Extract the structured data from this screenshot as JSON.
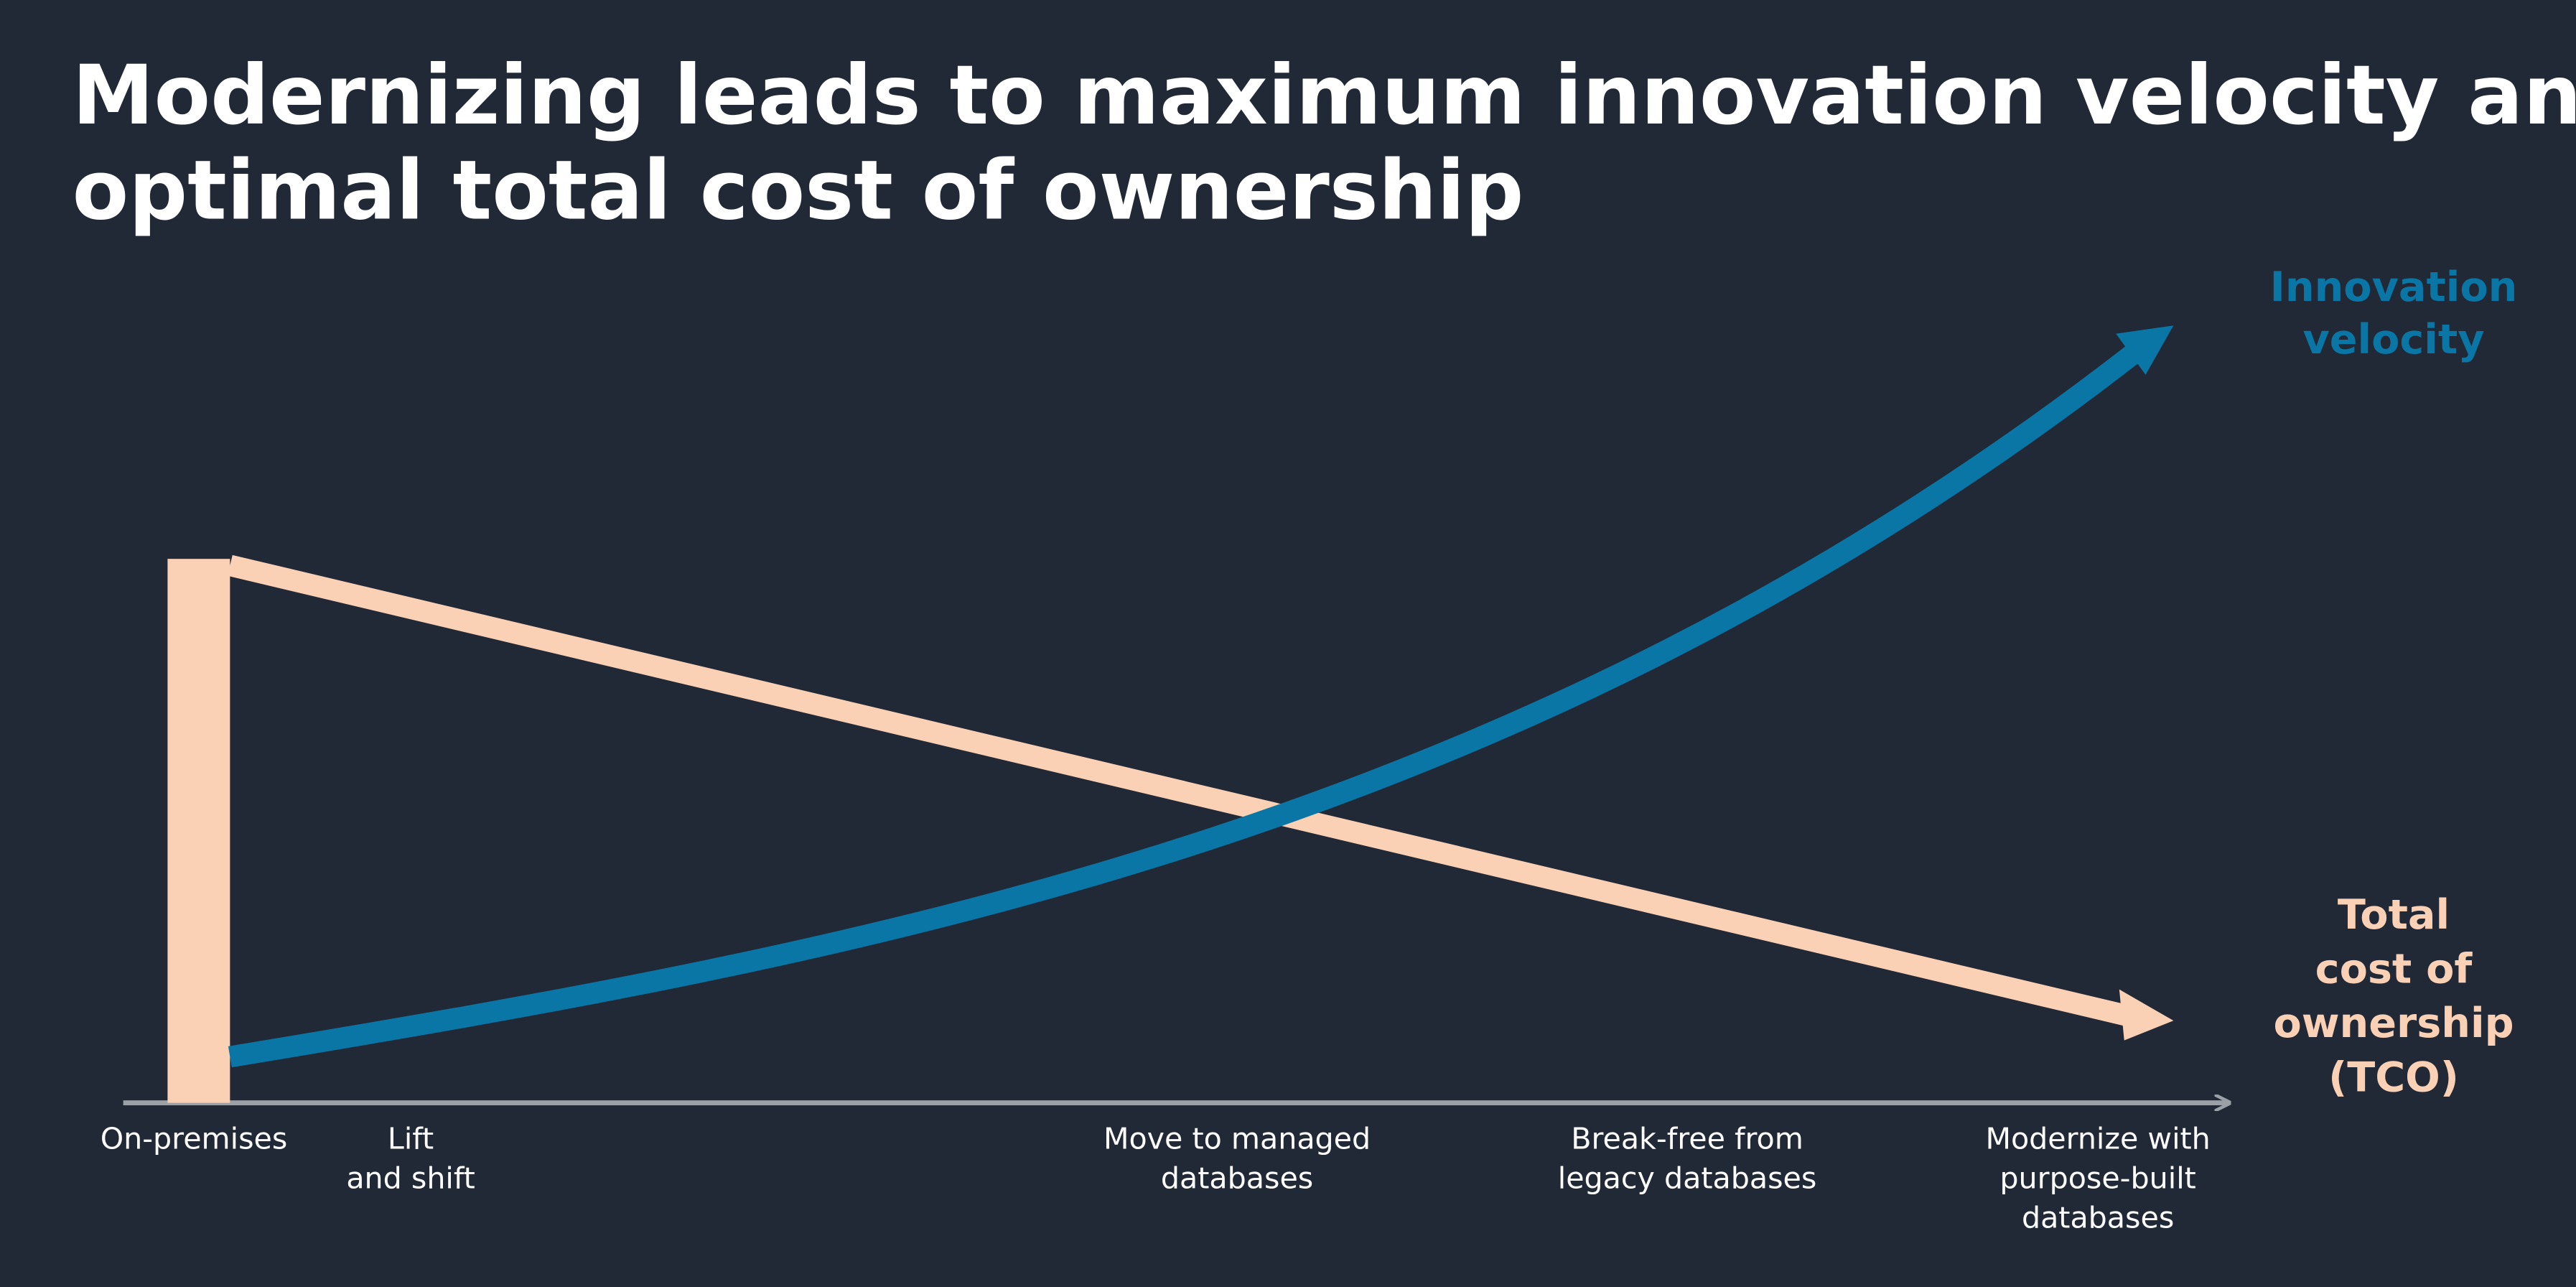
{
  "title": [
    "Modernizing leads to maximum innovation velocity and",
    "optimal total cost of ownership"
  ],
  "curves": {
    "innovation": [
      "Innovation",
      "velocity"
    ],
    "tco": [
      "Total",
      "cost of",
      "ownership",
      "(TCO)"
    ]
  },
  "stages": [
    [
      "On-premises"
    ],
    [
      "Lift",
      "and shift"
    ],
    [
      "Move to managed",
      "databases"
    ],
    [
      "Break-free from",
      "legacy databases"
    ],
    [
      "Modernize with",
      "purpose-built",
      "databases"
    ]
  ]
}
